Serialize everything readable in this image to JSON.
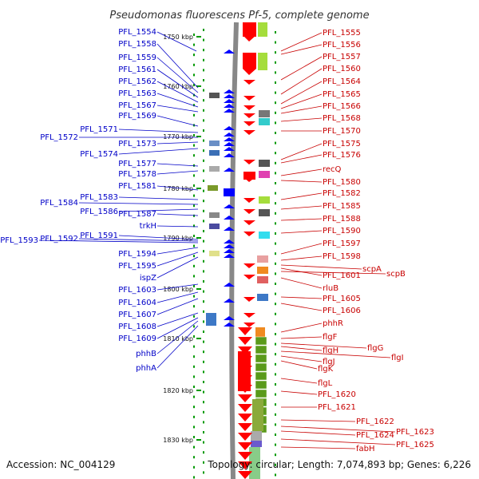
{
  "title": "Pseudomonas fluorescens Pf-5, complete genome",
  "accession": "Accession: NC_004129",
  "summary": "Topology: circular; Length: 7,074,893 bp; Genes: 6,226",
  "colors": {
    "forward_label": "#0000c8",
    "reverse_label": "#c80000",
    "forward_gene": "#0000ff",
    "reverse_gene": "#ff0000",
    "backbone": "#888888",
    "tick": "#009900"
  },
  "ruler": [
    "1750 kbp",
    "1760 kbp",
    "1770 kbp",
    "1780 kbp",
    "1790 kbp",
    "1800 kbp",
    "1810 kbp",
    "1820 kbp",
    "1830 kbp"
  ],
  "left_labels": [
    "PFL_1554",
    "PFL_1558",
    "PFL_1559",
    "PFL_1561",
    "PFL_1562",
    "PFL_1563",
    "PFL_1567",
    "PFL_1569",
    "PFL_1571",
    "PFL_1572",
    "PFL_1573",
    "PFL_1574",
    "PFL_1577",
    "PFL_1578",
    "PFL_1581",
    "PFL_1583",
    "PFL_1584",
    "PFL_1586",
    "PFL_1587",
    "trkH",
    "PFL_1591",
    "PFL_1592",
    "PFL_1593",
    "PFL_1594",
    "PFL_1595",
    "ispZ",
    "PFL_1603",
    "PFL_1604",
    "PFL_1607",
    "PFL_1608",
    "PFL_1609",
    "phhB",
    "phhA"
  ],
  "right_labels": [
    "PFL_1555",
    "PFL_1556",
    "PFL_1557",
    "PFL_1560",
    "PFL_1564",
    "PFL_1565",
    "PFL_1566",
    "PFL_1568",
    "PFL_1570",
    "PFL_1575",
    "PFL_1576",
    "recQ",
    "PFL_1580",
    "PFL_1582",
    "PFL_1585",
    "PFL_1588",
    "PFL_1590",
    "PFL_1597",
    "PFL_1598",
    "scpA",
    "PFL_1601",
    "scpB",
    "rluB",
    "PFL_1605",
    "PFL_1606",
    "phhR",
    "flgF",
    "flgG",
    "flgH",
    "flgI",
    "flgJ",
    "flgK",
    "flgL",
    "PFL_1620",
    "PFL_1621",
    "PFL_1622",
    "PFL_1623",
    "PFL_1624",
    "PFL_1625",
    "fabH"
  ]
}
